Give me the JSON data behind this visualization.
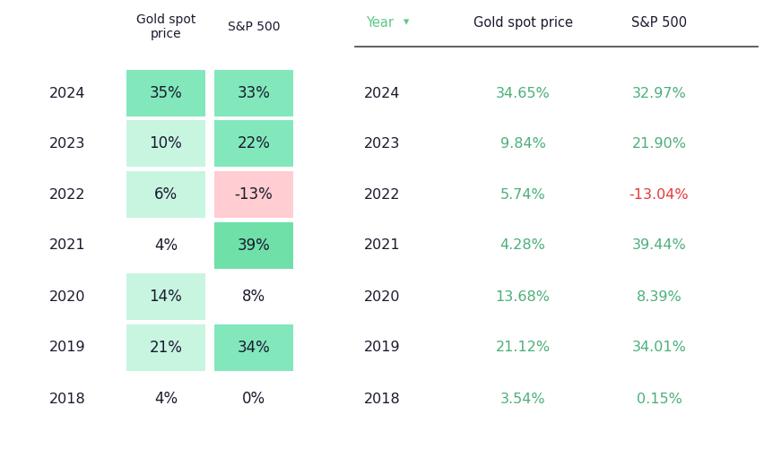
{
  "years": [
    "2024",
    "2023",
    "2022",
    "2021",
    "2020",
    "2019",
    "2018"
  ],
  "gold_rounded": [
    "35%",
    "10%",
    "6%",
    "4%",
    "14%",
    "21%",
    "4%"
  ],
  "sp500_rounded": [
    "33%",
    "22%",
    "-13%",
    "39%",
    "8%",
    "34%",
    "0%"
  ],
  "gold_exact": [
    "34.65%",
    "9.84%",
    "5.74%",
    "4.28%",
    "13.68%",
    "21.12%",
    "3.54%"
  ],
  "sp500_exact": [
    "32.97%",
    "21.90%",
    "-13.04%",
    "39.44%",
    "8.39%",
    "34.01%",
    "0.15%"
  ],
  "gold_bg": [
    "#82E8BC",
    "#C8F5E0",
    "#C8F5E0",
    null,
    "#C8F5E0",
    "#C8F5E0",
    null
  ],
  "sp500_bg": [
    "#82E8BC",
    "#82E8BC",
    "#FFCDD2",
    "#6FE0A8",
    null,
    "#82E8BC",
    null
  ],
  "red_color": "#E53935",
  "text_dark": "#1a1a2e",
  "text_green_right": "#4CAF7A",
  "header_color": "#1a1a2e",
  "year_header_green": "#5DC887",
  "bg_color": "#FFFFFF",
  "left_header_gold": "Gold spot\nprice",
  "left_header_sp": "S&P 500",
  "right_header_year": "Year",
  "right_header_gold": "Gold spot price",
  "right_header_sp": "S&P 500"
}
